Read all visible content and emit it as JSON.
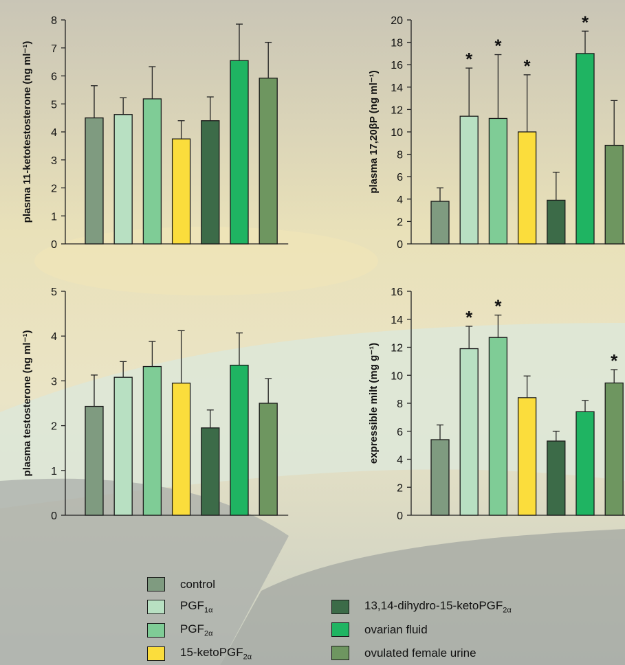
{
  "chart_data": [
    {
      "type": "bar",
      "ylabel": "plasma 11-ketotestosterone (ng ml⁻¹)",
      "ylim": [
        0,
        8
      ],
      "yticks": [
        0,
        1,
        2,
        3,
        4,
        5,
        6,
        7,
        8
      ],
      "categories": [
        "control",
        "PGF1α",
        "PGF2α",
        "15-ketoPGF2α",
        "13,14-dihydro-15-ketoPGF2α",
        "ovarian fluid",
        "ovulated female urine"
      ],
      "values": [
        4.5,
        4.62,
        5.18,
        3.75,
        4.4,
        6.55,
        5.92
      ],
      "errors": [
        1.15,
        0.6,
        1.15,
        0.65,
        0.85,
        1.3,
        1.28
      ],
      "significant": [
        false,
        false,
        false,
        false,
        false,
        false,
        false
      ]
    },
    {
      "type": "bar",
      "ylabel": "plasma 17,20βP (ng ml⁻¹)",
      "ylim": [
        0,
        20
      ],
      "yticks": [
        0,
        2,
        4,
        6,
        8,
        10,
        12,
        14,
        16,
        18,
        20
      ],
      "categories": [
        "control",
        "PGF1α",
        "PGF2α",
        "15-ketoPGF2α",
        "13,14-dihydro-15-ketoPGF2α",
        "ovarian fluid",
        "ovulated female urine"
      ],
      "values": [
        3.8,
        11.4,
        11.2,
        10.0,
        3.9,
        17.0,
        8.8
      ],
      "errors": [
        1.2,
        4.3,
        5.7,
        5.1,
        2.5,
        2.0,
        4.0
      ],
      "significant": [
        false,
        true,
        true,
        true,
        false,
        true,
        false
      ]
    },
    {
      "type": "bar",
      "ylabel": "plasma testosterone (ng ml⁻¹)",
      "ylim": [
        0,
        5
      ],
      "yticks": [
        0,
        1,
        2,
        3,
        4,
        5
      ],
      "categories": [
        "control",
        "PGF1α",
        "PGF2α",
        "15-ketoPGF2α",
        "13,14-dihydro-15-ketoPGF2α",
        "ovarian fluid",
        "ovulated female urine"
      ],
      "values": [
        2.43,
        3.08,
        3.32,
        2.95,
        1.95,
        3.35,
        2.5
      ],
      "errors": [
        0.7,
        0.35,
        0.56,
        1.17,
        0.4,
        0.72,
        0.55
      ],
      "significant": [
        false,
        false,
        false,
        false,
        false,
        false,
        false
      ]
    },
    {
      "type": "bar",
      "ylabel": "expressible milt (mg g⁻¹)",
      "ylim": [
        0,
        16
      ],
      "yticks": [
        0,
        2,
        4,
        6,
        8,
        10,
        12,
        14,
        16
      ],
      "categories": [
        "control",
        "PGF1α",
        "PGF2α",
        "15-ketoPGF2α",
        "13,14-dihydro-15-ketoPGF2α",
        "ovarian fluid",
        "ovulated female urine"
      ],
      "values": [
        5.4,
        11.9,
        12.7,
        8.4,
        5.3,
        7.4,
        9.45
      ],
      "errors": [
        1.05,
        1.6,
        1.6,
        1.55,
        0.7,
        0.8,
        0.95
      ],
      "significant": [
        false,
        true,
        true,
        false,
        false,
        false,
        true
      ]
    }
  ],
  "legend": {
    "items": [
      {
        "label": "control",
        "color": "#7f9b80"
      },
      {
        "label": "PGF",
        "sub": "1α",
        "color": "#b8e0c2"
      },
      {
        "label": "PGF",
        "sub": "2α",
        "color": "#7fcc96"
      },
      {
        "label": "15-ketoPGF",
        "sub": "2α",
        "color": "#fbdd3c"
      },
      {
        "label": "13,14-dihydro-15-ketoPGF",
        "sub": "2α",
        "color": "#3c6b48"
      },
      {
        "label": "ovarian fluid",
        "color": "#1fb462"
      },
      {
        "label": "ovulated female urine",
        "color": "#6e9660"
      }
    ]
  },
  "significance_marker": "*"
}
